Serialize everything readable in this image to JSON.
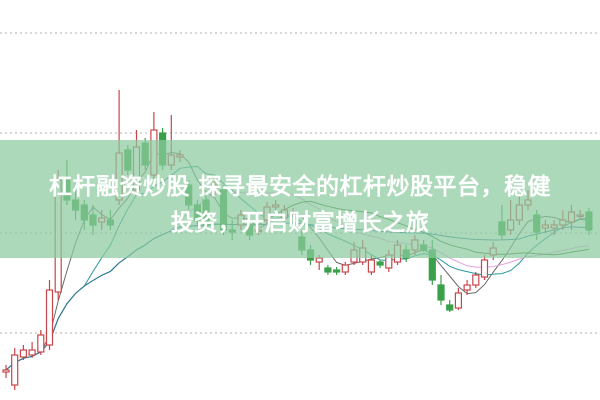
{
  "headline": {
    "line1": "杠杆融资炒股 探寻最安全的杠杆炒股平台，稳健",
    "line2": "投资，开启财富增长之旅"
  },
  "colors": {
    "banner": "#8ccaa0",
    "up_candle": "#c8464b",
    "down_candle": "#3aa04a",
    "grid": "#b0b0b0",
    "ma_lines": [
      "#6a6a6a",
      "#2a9a9a",
      "#e4a0e0",
      "#3a7a3a",
      "#2a7aa0"
    ]
  },
  "chart_data": {
    "type": "candlestick",
    "grid": "horizontal dotted",
    "moving_average_periods": [
      5,
      10,
      20,
      30,
      60
    ],
    "candles_ohlc": [
      [
        28,
        30,
        35,
        22
      ],
      [
        15,
        45,
        52,
        10
      ],
      [
        43,
        50,
        55,
        40
      ],
      [
        45,
        50,
        58,
        42
      ],
      [
        48,
        65,
        70,
        45
      ],
      [
        55,
        110,
        120,
        50
      ],
      [
        108,
        220,
        230,
        100
      ],
      [
        220,
        200,
        240,
        195
      ],
      [
        200,
        190,
        210,
        180
      ],
      [
        195,
        180,
        200,
        170
      ],
      [
        185,
        175,
        195,
        165
      ],
      [
        178,
        182,
        190,
        170
      ],
      [
        180,
        175,
        190,
        170
      ],
      [
        200,
        247,
        310,
        195
      ],
      [
        250,
        230,
        255,
        225
      ],
      [
        210,
        253,
        270,
        205
      ],
      [
        257,
        235,
        262,
        230
      ],
      [
        225,
        270,
        288,
        220
      ],
      [
        267,
        235,
        272,
        230
      ],
      [
        235,
        245,
        285,
        230
      ],
      [
        243,
        245,
        250,
        238
      ],
      [
        215,
        195,
        220,
        190
      ],
      [
        195,
        180,
        200,
        175
      ],
      [
        200,
        175,
        205,
        170
      ],
      [
        215,
        215,
        220,
        205
      ],
      [
        210,
        170,
        215,
        165
      ],
      [
        170,
        168,
        180,
        160
      ],
      [
        175,
        185,
        190,
        170
      ],
      [
        175,
        165,
        180,
        160
      ],
      [
        170,
        170,
        175,
        165
      ],
      [
        180,
        193,
        198,
        175
      ],
      [
        193,
        195,
        200,
        188
      ],
      [
        182,
        190,
        195,
        178
      ],
      [
        188,
        188,
        192,
        184
      ],
      [
        163,
        150,
        170,
        145
      ],
      [
        150,
        140,
        155,
        135
      ],
      [
        138,
        142,
        145,
        130
      ],
      [
        132,
        128,
        135,
        125
      ],
      [
        130,
        128,
        133,
        125
      ],
      [
        128,
        135,
        138,
        125
      ],
      [
        138,
        150,
        158,
        135
      ],
      [
        138,
        152,
        160,
        135
      ],
      [
        128,
        140,
        145,
        125
      ],
      [
        138,
        135,
        140,
        132
      ],
      [
        132,
        145,
        150,
        128
      ],
      [
        138,
        155,
        160,
        135
      ],
      [
        150,
        142,
        155,
        138
      ],
      [
        150,
        160,
        165,
        145
      ],
      [
        155,
        150,
        160,
        148
      ],
      [
        150,
        120,
        160,
        115
      ],
      [
        115,
        100,
        125,
        95
      ],
      [
        95,
        90,
        100,
        88
      ],
      [
        92,
        107,
        112,
        90
      ],
      [
        110,
        115,
        120,
        105
      ],
      [
        115,
        125,
        128,
        112
      ],
      [
        123,
        140,
        145,
        120
      ],
      [
        145,
        152,
        158,
        140
      ],
      [
        178,
        165,
        195,
        160
      ],
      [
        170,
        180,
        200,
        165
      ],
      [
        180,
        195,
        205,
        175
      ],
      [
        195,
        200,
        210,
        190
      ],
      [
        185,
        168,
        190,
        160
      ],
      [
        172,
        175,
        180,
        168
      ],
      [
        172,
        175,
        180,
        165
      ],
      [
        175,
        180,
        190,
        170
      ],
      [
        178,
        188,
        195,
        170
      ],
      [
        185,
        185,
        190,
        180
      ],
      [
        188,
        170,
        192,
        165
      ]
    ]
  }
}
